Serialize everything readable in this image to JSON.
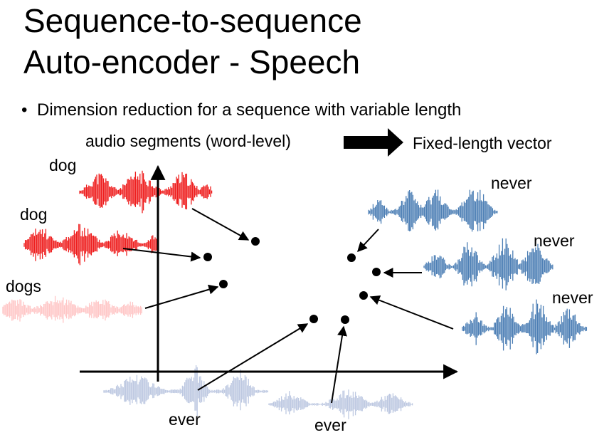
{
  "slide": {
    "title_line1": "Sequence-to-sequence",
    "title_line2": "Auto-encoder - Speech",
    "bullet": "Dimension reduction for a sequence with variable length",
    "left_caption": "audio segments (word-level)",
    "right_caption": "Fixed-length vector"
  },
  "labels": {
    "dog_1": "dog",
    "dog_2": "dog",
    "dogs": "dogs",
    "never_1": "never",
    "never_2": "never",
    "never_3": "never",
    "ever_1": "ever",
    "ever_2": "ever"
  },
  "colors": {
    "dog_wave": "#ee1111",
    "dogs_wave": "#ffc4c4",
    "never_wave": "#3a72ad",
    "ever_wave": "#b6c3de",
    "points": "#000000"
  },
  "icons": [
    "bullet-icon",
    "right-arrow-icon",
    "waveform-icon"
  ]
}
